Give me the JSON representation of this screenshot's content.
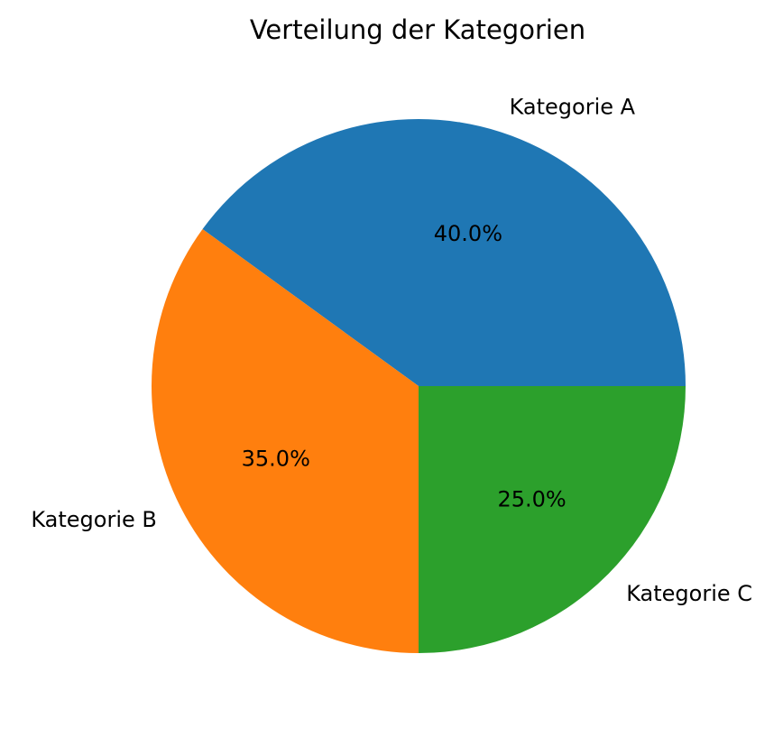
{
  "chart_data": {
    "type": "pie",
    "title": "Verteilung der Kategorien",
    "categories": [
      "Kategorie A",
      "Kategorie B",
      "Kategorie C"
    ],
    "values": [
      40.0,
      35.0,
      25.0
    ],
    "percent_labels": [
      "40.0%",
      "35.0%",
      "25.0%"
    ],
    "colors": [
      "#1f77b4",
      "#ff7f0e",
      "#2ca02c"
    ],
    "start_angle_deg": 0,
    "direction": "counterclockwise",
    "legend": "none"
  }
}
